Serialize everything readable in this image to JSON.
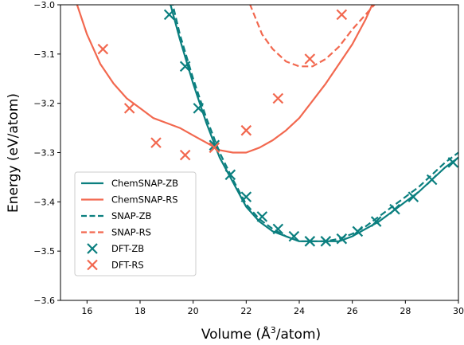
{
  "chart_data": {
    "type": "line",
    "xlabel_main": "Volume (Å",
    "xlabel_sup": "3",
    "xlabel_tail": "/atom)",
    "ylabel": "Energy (eV/atom)",
    "xlim": [
      15,
      30
    ],
    "ylim": [
      -3.6,
      -3.0
    ],
    "xticks": [
      16,
      18,
      20,
      22,
      24,
      26,
      28,
      30
    ],
    "yticks": [
      -3.6,
      -3.5,
      -3.4,
      -3.3,
      -3.2,
      -3.1,
      -3.0
    ],
    "xtick_labels": [
      "16",
      "18",
      "20",
      "22",
      "24",
      "26",
      "28",
      "30"
    ],
    "ytick_labels": [
      "−3.6",
      "−3.5",
      "−3.4",
      "−3.3",
      "−3.2",
      "−3.1",
      "−3.0"
    ],
    "colors": {
      "zb": "#0b7f7f",
      "rs": "#f2684f"
    },
    "legend_position": "lower-left",
    "series": [
      {
        "name": "ChemSNAP-ZB",
        "kind": "line",
        "style": "solid",
        "color": "#0b7f7f",
        "x": [
          19.0,
          19.5,
          20.0,
          20.5,
          21.0,
          21.5,
          22.0,
          22.5,
          23.0,
          23.5,
          24.0,
          24.5,
          25.0,
          25.5,
          26.0,
          26.5,
          27.0,
          27.5,
          28.0,
          28.5,
          29.0,
          29.5,
          30.0
        ],
        "y": [
          -2.97,
          -3.07,
          -3.16,
          -3.24,
          -3.31,
          -3.36,
          -3.41,
          -3.44,
          -3.46,
          -3.47,
          -3.48,
          -3.48,
          -3.48,
          -3.48,
          -3.47,
          -3.455,
          -3.44,
          -3.42,
          -3.4,
          -3.38,
          -3.355,
          -3.33,
          -3.31
        ]
      },
      {
        "name": "ChemSNAP-RS",
        "kind": "line",
        "style": "solid",
        "color": "#f2684f",
        "x": [
          15.5,
          16.0,
          16.5,
          17.0,
          17.5,
          18.0,
          18.5,
          19.0,
          19.5,
          20.0,
          20.5,
          21.0,
          21.5,
          22.0,
          22.5,
          23.0,
          23.5,
          24.0,
          24.5,
          25.0,
          25.5,
          26.0,
          26.5,
          27.0
        ],
        "y": [
          -2.98,
          -3.06,
          -3.12,
          -3.16,
          -3.19,
          -3.21,
          -3.23,
          -3.24,
          -3.25,
          -3.265,
          -3.28,
          -3.295,
          -3.3,
          -3.3,
          -3.29,
          -3.275,
          -3.255,
          -3.23,
          -3.195,
          -3.16,
          -3.12,
          -3.08,
          -3.03,
          -2.97
        ]
      },
      {
        "name": "SNAP-ZB",
        "kind": "line",
        "style": "dashed",
        "color": "#0b7f7f",
        "x": [
          19.1,
          19.5,
          20.0,
          20.5,
          21.0,
          21.5,
          22.0,
          22.5,
          23.0,
          23.5,
          24.0,
          24.5,
          25.0,
          25.5,
          26.0,
          26.5,
          27.0,
          27.5,
          28.0,
          28.5,
          29.0,
          29.5,
          30.0
        ],
        "y": [
          -2.97,
          -3.06,
          -3.15,
          -3.23,
          -3.3,
          -3.355,
          -3.405,
          -3.435,
          -3.455,
          -3.47,
          -3.48,
          -3.48,
          -3.48,
          -3.475,
          -3.465,
          -3.45,
          -3.43,
          -3.41,
          -3.39,
          -3.37,
          -3.345,
          -3.32,
          -3.3
        ]
      },
      {
        "name": "SNAP-RS",
        "kind": "line",
        "style": "dashed",
        "color": "#f2684f",
        "x": [
          22.0,
          22.3,
          22.6,
          23.0,
          23.5,
          24.0,
          24.5,
          25.0,
          25.5,
          26.0,
          26.5,
          27.0
        ],
        "y": [
          -2.98,
          -3.02,
          -3.06,
          -3.09,
          -3.115,
          -3.125,
          -3.125,
          -3.11,
          -3.085,
          -3.05,
          -3.02,
          -2.99
        ]
      },
      {
        "name": "DFT-ZB",
        "kind": "scatter",
        "marker": "x",
        "color": "#0b7f7f",
        "x": [
          19.1,
          19.7,
          20.2,
          20.8,
          21.4,
          22.0,
          22.6,
          23.2,
          23.8,
          24.4,
          25.0,
          25.6,
          26.2,
          26.9,
          27.6,
          28.3,
          29.0,
          29.8
        ],
        "y": [
          -3.02,
          -3.125,
          -3.21,
          -3.285,
          -3.345,
          -3.39,
          -3.43,
          -3.455,
          -3.47,
          -3.48,
          -3.48,
          -3.475,
          -3.46,
          -3.44,
          -3.415,
          -3.39,
          -3.355,
          -3.32
        ]
      },
      {
        "name": "DFT-RS",
        "kind": "scatter",
        "marker": "x",
        "color": "#f2684f",
        "x": [
          16.6,
          17.6,
          18.6,
          19.7,
          20.8,
          22.0,
          23.2,
          24.4,
          25.6
        ],
        "y": [
          -3.09,
          -3.21,
          -3.28,
          -3.305,
          -3.29,
          -3.255,
          -3.19,
          -3.11,
          -3.02
        ]
      }
    ]
  }
}
